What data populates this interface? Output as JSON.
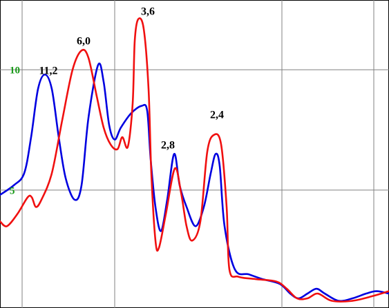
{
  "chart_data": {
    "type": "line",
    "annotations": [
      "11,2",
      "6,0",
      "3,6",
      "2,8",
      "2,4"
    ],
    "xlim": [
      0,
      112.6
    ],
    "xticks": [
      6.4,
      33.2,
      81.6,
      108.2
    ],
    "ylim": [
      0.1,
      12.9
    ],
    "yticks": [
      5,
      10
    ],
    "grid": true,
    "series": [
      {
        "color": "#0000e0",
        "x": [
          0,
          4,
          7,
          9,
          11,
          13,
          15,
          17,
          19,
          21.6,
          23.6,
          25.6,
          28.4,
          30,
          31.6,
          33.2,
          35,
          38,
          41,
          42.6,
          43.6,
          45,
          46.6,
          48.4,
          50.4,
          52,
          54,
          56.6,
          59,
          61,
          62.4,
          63.6,
          65,
          68,
          72,
          76,
          81,
          84,
          86.4,
          89,
          91.6,
          94,
          98,
          102,
          106,
          109,
          112.6
        ],
        "values": [
          4.8,
          5.2,
          5.7,
          7.2,
          9.2,
          9.8,
          9.2,
          7.2,
          5.5,
          4.6,
          5.2,
          8.0,
          10.2,
          9.5,
          7.7,
          7.1,
          7.6,
          8.2,
          8.5,
          8.3,
          6.3,
          4.3,
          3.3,
          4.6,
          6.5,
          5.2,
          4.3,
          3.5,
          4.3,
          5.7,
          6.5,
          6.0,
          3.5,
          1.7,
          1.5,
          1.3,
          1.1,
          0.7,
          0.5,
          0.7,
          0.9,
          0.7,
          0.4,
          0.5,
          0.7,
          0.8,
          0.7
        ]
      },
      {
        "color": "#f01010",
        "x": [
          0,
          2,
          5,
          8,
          9.2,
          10.4,
          12,
          15,
          18,
          21,
          23.6,
          25.6,
          28,
          30,
          32,
          34,
          35.4,
          37,
          38.4,
          39,
          40,
          41.6,
          43,
          43.8,
          45,
          46,
          48,
          50.6,
          52.4,
          54,
          55.6,
          58,
          60,
          62,
          64,
          65.6,
          66.4,
          69,
          74,
          80,
          83,
          86,
          89,
          92,
          96,
          102,
          108,
          112.6
        ],
        "values": [
          3.7,
          3.5,
          4.0,
          4.7,
          4.7,
          4.3,
          4.6,
          5.7,
          7.9,
          10.0,
          10.8,
          10.5,
          8.9,
          7.6,
          6.9,
          6.7,
          7.2,
          6.8,
          8.6,
          11.2,
          12.1,
          11.7,
          9.2,
          5.7,
          2.9,
          2.6,
          4.0,
          5.9,
          4.9,
          3.5,
          2.9,
          3.7,
          6.6,
          7.3,
          6.9,
          4.3,
          1.7,
          1.4,
          1.3,
          1.2,
          0.9,
          0.5,
          0.5,
          0.7,
          0.4,
          0.4,
          0.6,
          0.8
        ]
      }
    ]
  }
}
